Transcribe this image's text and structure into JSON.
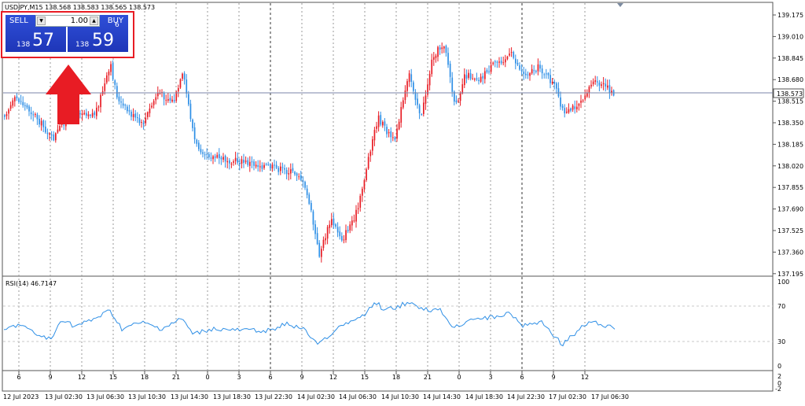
{
  "header": {
    "text": "USDJPY,M15  138.568 138.583 138.565 138.573"
  },
  "trade_panel": {
    "sell_label": "SELL",
    "buy_label": "BUY",
    "lot": "1.00",
    "sell_prefix": "138",
    "sell_big": "57",
    "sell_sup": "3",
    "buy_prefix": "138",
    "buy_big": "59",
    "buy_sup": "6"
  },
  "price_axis": [
    "139.175",
    "139.010",
    "138.845",
    "138.680",
    "138.515",
    "138.350",
    "138.185",
    "138.020",
    "137.855",
    "137.690",
    "137.525",
    "137.360",
    "137.195"
  ],
  "current_price": "138.573",
  "rsi": {
    "label": "RSI(14) 46.7147",
    "levels": [
      "100",
      "70",
      "30",
      "0"
    ]
  },
  "hour_labels": [
    "6",
    "9",
    "12",
    "15",
    "18",
    "21",
    "0",
    "3",
    "6",
    "9",
    "12",
    "15",
    "18",
    "21",
    "0",
    "3",
    "6",
    "9",
    "12"
  ],
  "date_labels": [
    "12 Jul 2023",
    "13 Jul 02:30",
    "13 Jul 06:30",
    "13 Jul 10:30",
    "13 Jul 14:30",
    "13 Jul 18:30",
    "13 Jul 22:30",
    "14 Jul 02:30",
    "14 Jul 06:30",
    "14 Jul 10:30",
    "14 Jul 14:30",
    "14 Jul 18:30",
    "14 Jul 22:30",
    "17 Jul 02:30",
    "17 Jul 06:30"
  ],
  "bottom_axis": [
    "2",
    "0",
    "-2"
  ],
  "colors": {
    "bull": "#e81c24",
    "bear": "#2e8fe6",
    "rsi_line": "#2e8fe6",
    "arrow": "#e81c24",
    "panel_border": "#e81c24",
    "button": "#2339c2"
  }
}
